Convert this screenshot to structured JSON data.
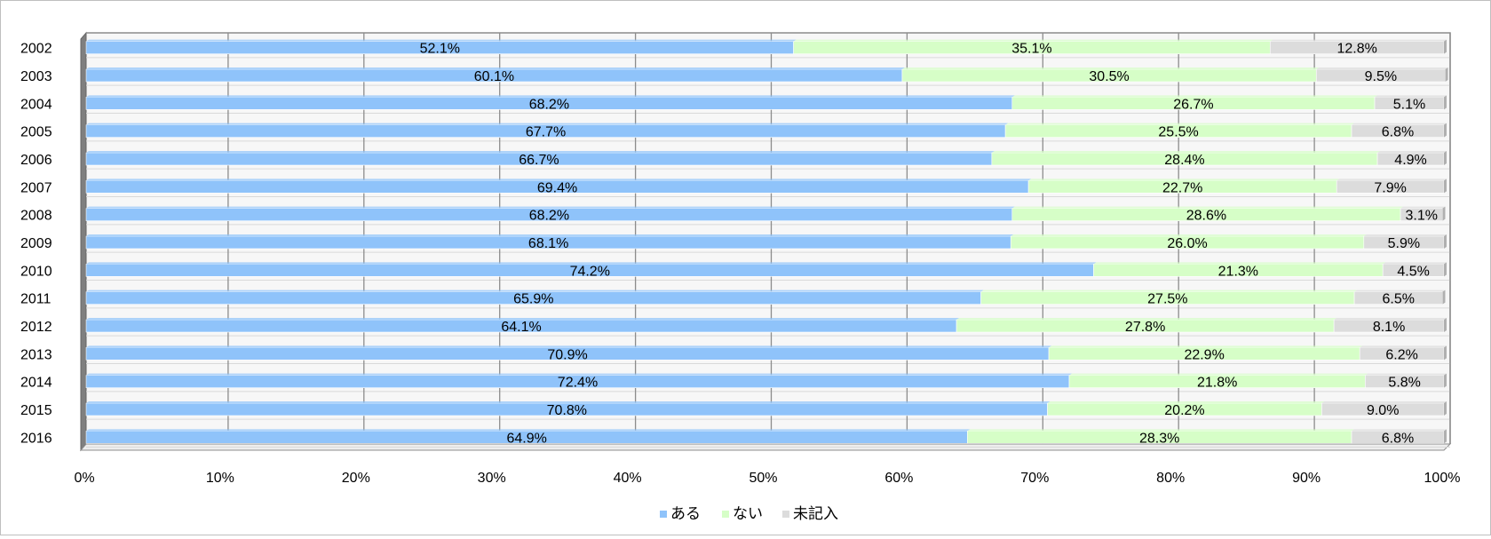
{
  "chart_data": {
    "type": "bar",
    "orientation": "horizontal",
    "stacked": "100%",
    "categories": [
      "2002",
      "2003",
      "2004",
      "2005",
      "2006",
      "2007",
      "2008",
      "2009",
      "2010",
      "2011",
      "2012",
      "2013",
      "2014",
      "2015",
      "2016"
    ],
    "series": [
      {
        "name": "ある",
        "color": "#8fc3fa",
        "values": [
          52.1,
          60.1,
          68.2,
          67.7,
          66.7,
          69.4,
          68.2,
          68.1,
          74.2,
          65.9,
          64.1,
          70.9,
          72.4,
          70.8,
          64.9
        ]
      },
      {
        "name": "ない",
        "color": "#d6fec7",
        "values": [
          35.1,
          30.5,
          26.7,
          25.5,
          28.4,
          22.7,
          28.6,
          26.0,
          21.3,
          27.5,
          27.8,
          22.9,
          21.8,
          20.2,
          28.3
        ]
      },
      {
        "name": "未記入",
        "color": "#dcdcdc",
        "values": [
          12.8,
          9.5,
          5.1,
          6.8,
          4.9,
          7.9,
          3.1,
          5.9,
          4.5,
          6.5,
          8.1,
          6.2,
          5.8,
          9.0,
          6.8
        ]
      }
    ],
    "value_suffix": "%",
    "xlim": [
      0,
      100
    ],
    "x_ticks": [
      "0%",
      "10%",
      "20%",
      "30%",
      "40%",
      "50%",
      "60%",
      "70%",
      "80%",
      "90%",
      "100%"
    ],
    "grid": true,
    "legend_position": "bottom"
  }
}
